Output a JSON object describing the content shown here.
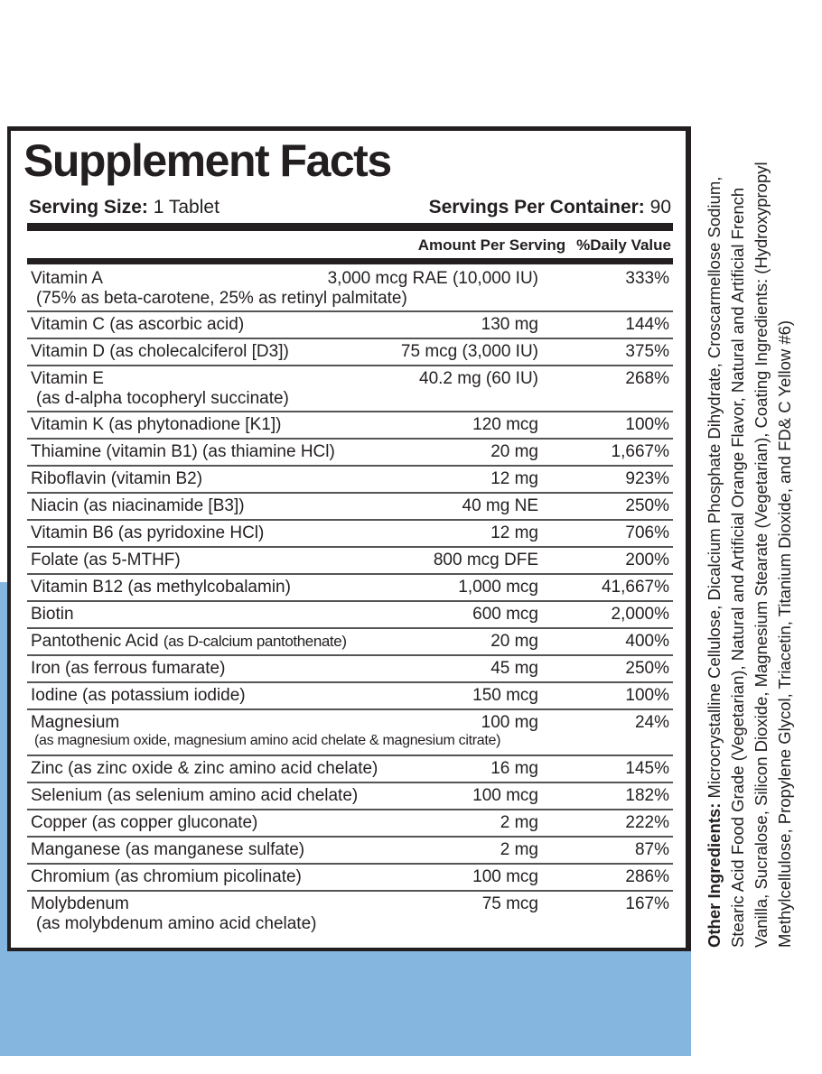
{
  "colors": {
    "band": "#85b6df",
    "ink": "#231f20"
  },
  "title": "Supplement Facts",
  "serving_size_label": "Serving Size:",
  "serving_size_value": "1 Tablet",
  "servings_label": "Servings Per Container:",
  "servings_value": "90",
  "col_amount": "Amount Per Serving",
  "col_dv": "%Daily Value",
  "rows": [
    {
      "name": "Vitamin A",
      "sub": "(75% as beta-carotene, 25% as retinyl palmitate)",
      "amount": "3,000 mcg RAE (10,000 IU)",
      "dv": "333%"
    },
    {
      "name": "Vitamin C (as ascorbic acid)",
      "amount": "130 mg",
      "dv": "144%"
    },
    {
      "name": "Vitamin D (as cholecalciferol [D3])",
      "amount": "75 mcg (3,000 IU)",
      "dv": "375%"
    },
    {
      "name": "Vitamin E",
      "sub": "(as d-alpha tocopheryl succinate)",
      "amount": "40.2 mg (60 IU)",
      "dv": "268%"
    },
    {
      "name": "Vitamin K (as phytonadione [K1])",
      "amount": "120 mcg",
      "dv": "100%"
    },
    {
      "name": "Thiamine (vitamin B1) (as thiamine HCl)",
      "amount": "20 mg",
      "dv": "1,667%"
    },
    {
      "name": "Riboflavin (vitamin B2)",
      "amount": "12 mg",
      "dv": "923%"
    },
    {
      "name": "Niacin (as niacinamide [B3])",
      "amount": "40 mg NE",
      "dv": "250%"
    },
    {
      "name": "Vitamin B6 (as pyridoxine HCl)",
      "amount": "12 mg",
      "dv": "706%"
    },
    {
      "name": "Folate (as 5-MTHF)",
      "amount": "800 mcg DFE",
      "dv": "200%"
    },
    {
      "name": "Vitamin B12 (as methylcobalamin)",
      "amount": "1,000 mcg",
      "dv": "41,667%"
    },
    {
      "name": "Biotin",
      "amount": "600 mcg",
      "dv": "2,000%"
    },
    {
      "name": "Pantothenic Acid",
      "name_extra": "(as D-calcium pantothenate)",
      "amount": "20 mg",
      "dv": "400%"
    },
    {
      "name": "Iron (as ferrous fumarate)",
      "amount": "45 mg",
      "dv": "250%"
    },
    {
      "name": "Iodine (as potassium iodide)",
      "amount": "150 mcg",
      "dv": "100%"
    },
    {
      "name": "Magnesium",
      "sub": "(as magnesium oxide, magnesium amino acid chelate & magnesium citrate)",
      "amount": "100 mg",
      "dv": "24%"
    },
    {
      "name": "Zinc (as zinc oxide & zinc amino acid chelate)",
      "amount": "16 mg",
      "dv": "145%"
    },
    {
      "name": "Selenium (as selenium amino acid chelate)",
      "amount": "100 mcg",
      "dv": "182%"
    },
    {
      "name": "Copper (as copper gluconate)",
      "amount": "2 mg",
      "dv": "222%"
    },
    {
      "name": "Manganese (as manganese sulfate)",
      "amount": "2 mg",
      "dv": "87%"
    },
    {
      "name": "Chromium (as chromium picolinate)",
      "amount": "100 mcg",
      "dv": "286%"
    },
    {
      "name": "Molybdenum",
      "sub": "(as molybdenum amino acid chelate)",
      "amount": "75 mcg",
      "dv": "167%"
    }
  ],
  "other_ingredients_label": "Other Ingredients:",
  "other_ingredients_text": "Microcrystalline Cellulose, Dicalcium Phosphate Dihydrate, Croscarmellose Sodium, Stearic Acid Food Grade (Vegetarian), Natural and Artificial Orange Flavor, Natural and Artificial French Vanilla, Sucralose, Silicon Dioxide, Magnesium Stearate (Vegetarian), Coating Ingredients: (Hydroxypropyl Methylcellulose, Propylene Glycol, Triacetin, Titanium Dioxide, and FD& C Yellow #6)"
}
